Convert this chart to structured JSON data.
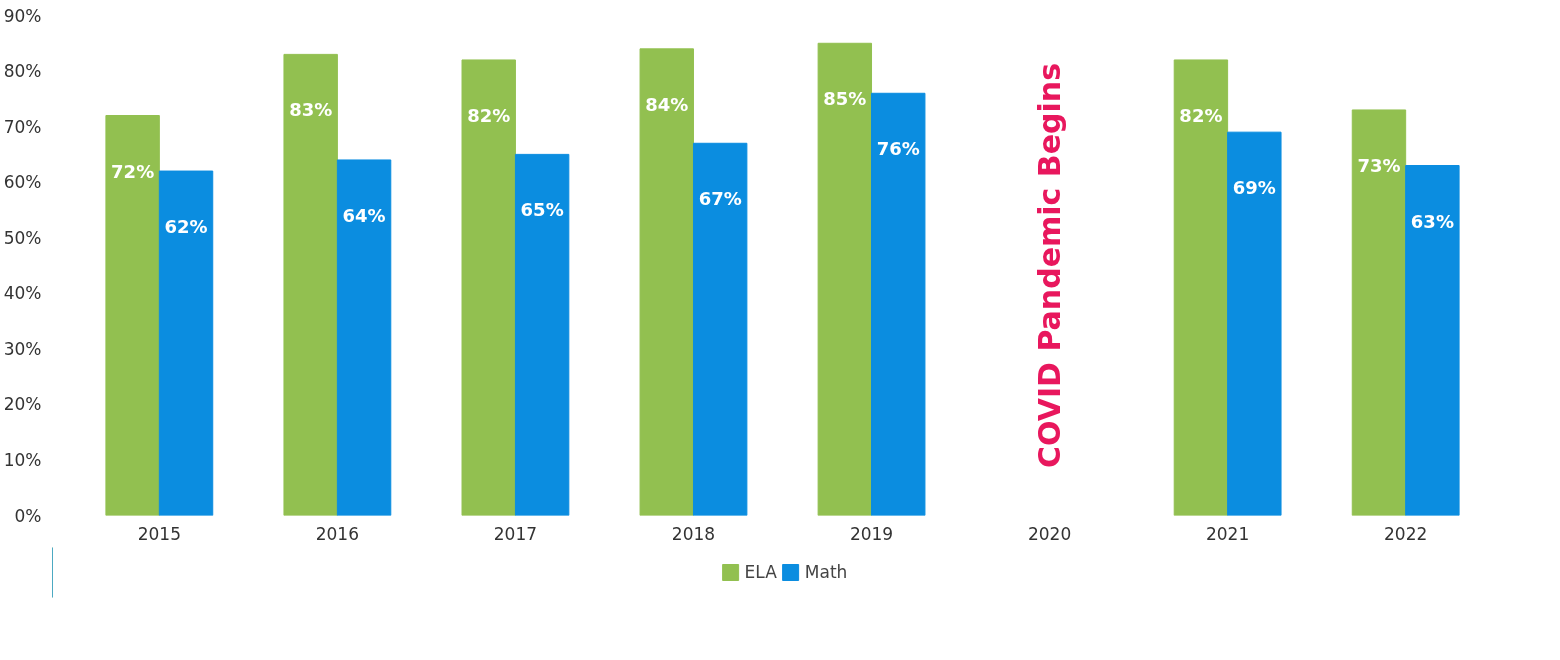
{
  "chart_data": {
    "type": "bar",
    "categories": [
      "2015",
      "2016",
      "2017",
      "2018",
      "2019",
      "2020",
      "2021",
      "2022"
    ],
    "series": [
      {
        "name": "ELA",
        "color": "#92c050",
        "values": [
          72,
          83,
          82,
          84,
          85,
          null,
          82,
          73
        ],
        "value_labels": [
          "72%",
          "83%",
          "82%",
          "84%",
          "85%",
          null,
          "82%",
          "73%"
        ]
      },
      {
        "name": "Math",
        "color": "#0b8de0",
        "values": [
          62,
          64,
          65,
          67,
          76,
          null,
          69,
          63
        ],
        "value_labels": [
          "62%",
          "64%",
          "65%",
          "67%",
          "76%",
          null,
          "69%",
          "63%"
        ]
      }
    ],
    "ylim": [
      0,
      90
    ],
    "yticks": [
      {
        "value": 0,
        "label": "0%"
      },
      {
        "value": 10,
        "label": "10%"
      },
      {
        "value": 20,
        "label": "20%"
      },
      {
        "value": 30,
        "label": "30%"
      },
      {
        "value": 40,
        "label": "40%"
      },
      {
        "value": 50,
        "label": "50%"
      },
      {
        "value": 60,
        "label": "60%"
      },
      {
        "value": 70,
        "label": "70%"
      },
      {
        "value": 80,
        "label": "80%"
      },
      {
        "value": 90,
        "label": "90%"
      }
    ],
    "annotations": [
      "COVID Pandemic Begins"
    ],
    "legend": "bottom",
    "grid": false
  }
}
